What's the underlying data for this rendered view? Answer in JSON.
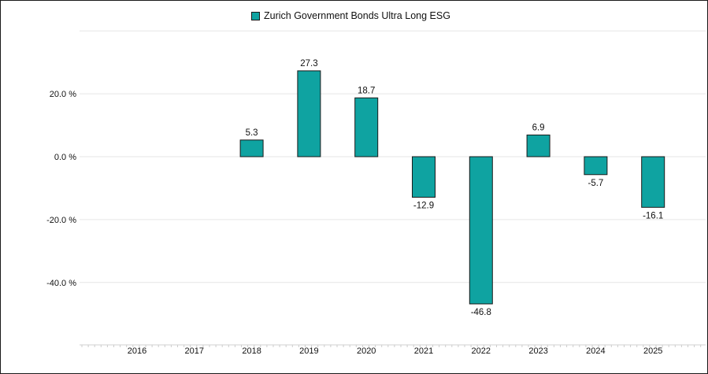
{
  "chart_data": {
    "type": "bar",
    "categories": [
      "2016",
      "2017",
      "2018",
      "2019",
      "2020",
      "2021",
      "2022",
      "2023",
      "2024",
      "2025"
    ],
    "series": [
      {
        "name": "Zurich Government Bonds Ultra Long ESG",
        "values": [
          null,
          null,
          5.3,
          27.3,
          18.7,
          -12.9,
          -46.8,
          6.9,
          -5.7,
          -16.1
        ],
        "value_labels": [
          "",
          "",
          "5.3",
          "27.3",
          "18.7",
          "-12.9",
          "-46.8",
          "6.9",
          "-5.7",
          "-16.1"
        ],
        "color": "#0fa3a1"
      }
    ],
    "y_ticks": [
      {
        "value": 20,
        "label": "20.0 %"
      },
      {
        "value": 0,
        "label": "0.0 %"
      },
      {
        "value": -20,
        "label": "-20.0 %"
      },
      {
        "value": -40,
        "label": "-40.0 %"
      }
    ],
    "ylim": [
      -60,
      40
    ],
    "grid": true,
    "legend_position": "top-center",
    "title": "",
    "xlabel": "",
    "ylabel": ""
  }
}
